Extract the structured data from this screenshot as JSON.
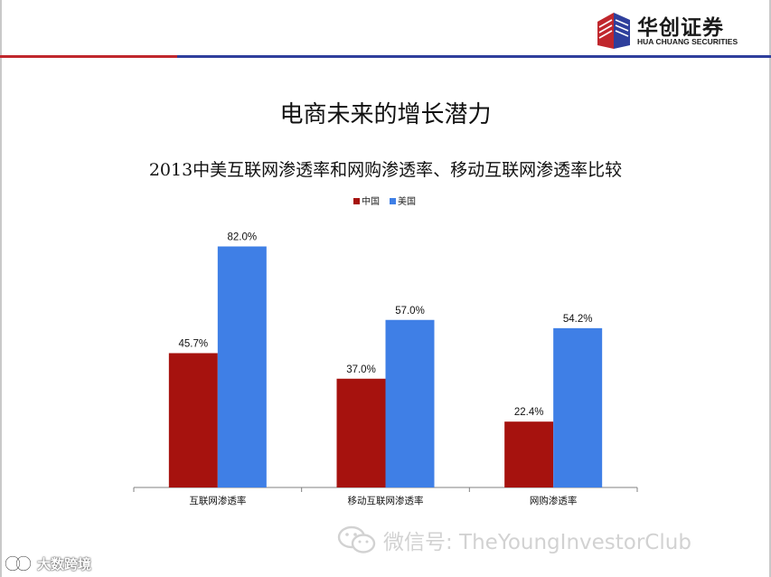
{
  "header": {
    "logo_text": "华创证券",
    "logo_sub": "HUA CHUANG SECURITIES"
  },
  "slide_title": "电商未来的增长潜力",
  "chart_title": "2013中美互联网渗透率和网购渗透率、移动互联网渗透率比较",
  "colors": {
    "china": "#a6120e",
    "usa": "#3f7fe6",
    "rule_red": "#c0272d",
    "rule_blue": "#2f3f9c"
  },
  "chart_data": {
    "type": "bar",
    "title": "2013中美互联网渗透率和网购渗透率、移动互联网渗透率比较",
    "categories": [
      "互联网渗透率",
      "移动互联网渗透率",
      "网购渗透率"
    ],
    "series": [
      {
        "name": "中国",
        "values": [
          45.7,
          37.0,
          22.4
        ],
        "labels": [
          "45.7%",
          "37.0%",
          "22.4%"
        ],
        "color": "#a6120e"
      },
      {
        "name": "美国",
        "values": [
          82.0,
          57.0,
          54.2
        ],
        "labels": [
          "82.0%",
          "57.0%",
          "54.2%"
        ],
        "color": "#3f7fe6"
      }
    ],
    "ylim": [
      0,
      100
    ],
    "grid": false,
    "legend": "top-center"
  },
  "watermark": {
    "text": "微信号: TheYoungInvestorClub",
    "icon": "wechat-icon"
  },
  "corner_mark": {
    "text": "大数跨境",
    "icon": "bigdata-logo-icon"
  }
}
